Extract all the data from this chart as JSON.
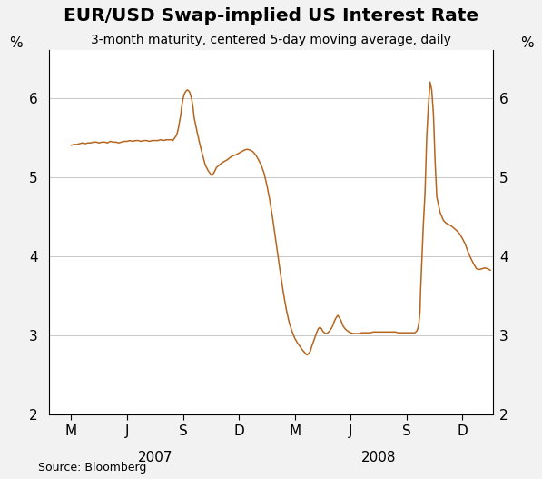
{
  "title": "EUR/USD Swap-implied US Interest Rate",
  "subtitle": "3-month maturity, centered 5-day moving average, daily",
  "source": "Source: Bloomberg",
  "line_color": "#b5651d",
  "bg_color": "#f2f2f2",
  "plot_bg_color": "#ffffff",
  "grid_color": "#c8c8c8",
  "spine_color": "#000000",
  "ylim": [
    2,
    6.6
  ],
  "yticks": [
    2,
    3,
    4,
    5,
    6
  ],
  "x_tick_labels": [
    "M",
    "J",
    "S",
    "D",
    "M",
    "J",
    "S",
    "D"
  ],
  "x_tick_positions": [
    0,
    1,
    2,
    3,
    4,
    5,
    6,
    7
  ],
  "xlim": [
    -0.4,
    7.55
  ],
  "year_2007_x": 1.5,
  "year_2008_x": 5.5,
  "keypoints_x": [
    0.0,
    0.05,
    0.1,
    0.15,
    0.2,
    0.25,
    0.3,
    0.35,
    0.4,
    0.45,
    0.5,
    0.55,
    0.6,
    0.65,
    0.7,
    0.75,
    0.8,
    0.85,
    0.9,
    0.95,
    1.0,
    1.05,
    1.1,
    1.15,
    1.2,
    1.25,
    1.3,
    1.35,
    1.4,
    1.45,
    1.5,
    1.55,
    1.6,
    1.65,
    1.7,
    1.75,
    1.8,
    1.82,
    1.84,
    1.86,
    1.88,
    1.9,
    1.92,
    1.94,
    1.96,
    1.98,
    2.0,
    2.02,
    2.04,
    2.06,
    2.08,
    2.1,
    2.12,
    2.14,
    2.16,
    2.18,
    2.2,
    2.25,
    2.3,
    2.35,
    2.4,
    2.45,
    2.5,
    2.52,
    2.54,
    2.56,
    2.58,
    2.6,
    2.65,
    2.7,
    2.75,
    2.8,
    2.85,
    2.9,
    2.95,
    3.0,
    3.05,
    3.1,
    3.15,
    3.2,
    3.25,
    3.3,
    3.35,
    3.4,
    3.45,
    3.5,
    3.55,
    3.6,
    3.65,
    3.7,
    3.75,
    3.8,
    3.85,
    3.9,
    3.95,
    4.0,
    4.05,
    4.1,
    4.15,
    4.18,
    4.2,
    4.22,
    4.25,
    4.28,
    4.3,
    4.33,
    4.36,
    4.39,
    4.42,
    4.45,
    4.48,
    4.5,
    4.53,
    4.56,
    4.59,
    4.62,
    4.65,
    4.68,
    4.71,
    4.74,
    4.77,
    4.8,
    4.83,
    4.86,
    4.9,
    4.95,
    5.0,
    5.05,
    5.1,
    5.15,
    5.2,
    5.25,
    5.3,
    5.35,
    5.4,
    5.45,
    5.5,
    5.55,
    5.6,
    5.65,
    5.7,
    5.75,
    5.8,
    5.85,
    5.9,
    5.95,
    6.0,
    6.05,
    6.1,
    6.15,
    6.18,
    6.2,
    6.22,
    6.24,
    6.25,
    6.27,
    6.3,
    6.33,
    6.36,
    6.39,
    6.42,
    6.45,
    6.48,
    6.51,
    6.54,
    6.57,
    6.6,
    6.63,
    6.66,
    6.7,
    6.75,
    6.8,
    6.85,
    6.9,
    6.95,
    7.0,
    7.05,
    7.1,
    7.15,
    7.2,
    7.25,
    7.3,
    7.35,
    7.4,
    7.45,
    7.5
  ],
  "keypoints_y": [
    5.4,
    5.41,
    5.41,
    5.42,
    5.43,
    5.42,
    5.43,
    5.43,
    5.44,
    5.44,
    5.43,
    5.44,
    5.44,
    5.43,
    5.45,
    5.44,
    5.44,
    5.43,
    5.44,
    5.45,
    5.45,
    5.46,
    5.45,
    5.46,
    5.46,
    5.45,
    5.46,
    5.46,
    5.45,
    5.46,
    5.46,
    5.46,
    5.47,
    5.46,
    5.47,
    5.47,
    5.47,
    5.46,
    5.48,
    5.5,
    5.52,
    5.56,
    5.62,
    5.7,
    5.78,
    5.9,
    5.98,
    6.04,
    6.07,
    6.09,
    6.1,
    6.09,
    6.07,
    6.03,
    5.97,
    5.88,
    5.75,
    5.58,
    5.42,
    5.28,
    5.15,
    5.08,
    5.03,
    5.02,
    5.04,
    5.06,
    5.09,
    5.12,
    5.15,
    5.18,
    5.2,
    5.22,
    5.25,
    5.27,
    5.28,
    5.3,
    5.32,
    5.34,
    5.35,
    5.34,
    5.32,
    5.28,
    5.22,
    5.15,
    5.05,
    4.9,
    4.72,
    4.5,
    4.25,
    4.0,
    3.75,
    3.52,
    3.32,
    3.16,
    3.05,
    2.96,
    2.9,
    2.85,
    2.8,
    2.78,
    2.76,
    2.75,
    2.77,
    2.8,
    2.85,
    2.91,
    2.97,
    3.03,
    3.08,
    3.1,
    3.08,
    3.05,
    3.03,
    3.02,
    3.03,
    3.05,
    3.08,
    3.12,
    3.18,
    3.22,
    3.25,
    3.22,
    3.18,
    3.12,
    3.08,
    3.05,
    3.03,
    3.02,
    3.02,
    3.02,
    3.03,
    3.03,
    3.03,
    3.03,
    3.04,
    3.04,
    3.04,
    3.04,
    3.04,
    3.04,
    3.04,
    3.04,
    3.04,
    3.03,
    3.03,
    3.03,
    3.03,
    3.03,
    3.03,
    3.03,
    3.05,
    3.08,
    3.15,
    3.3,
    3.55,
    3.9,
    4.4,
    4.8,
    5.5,
    5.9,
    6.2,
    6.1,
    5.8,
    5.2,
    4.75,
    4.65,
    4.55,
    4.5,
    4.45,
    4.42,
    4.4,
    4.38,
    4.35,
    4.32,
    4.28,
    4.22,
    4.15,
    4.05,
    3.97,
    3.9,
    3.84,
    3.83,
    3.84,
    3.85,
    3.84,
    3.82
  ]
}
